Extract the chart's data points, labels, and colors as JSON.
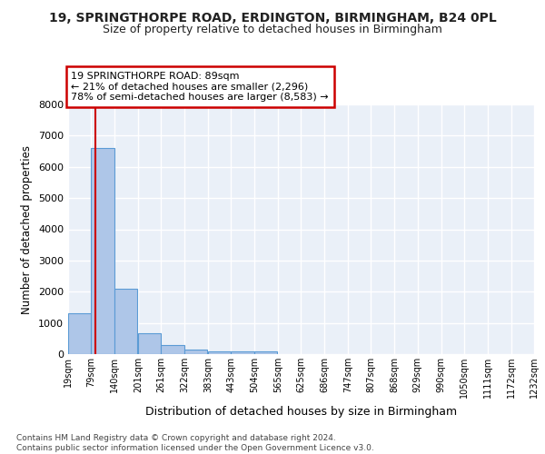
{
  "title": "19, SPRINGTHORPE ROAD, ERDINGTON, BIRMINGHAM, B24 0PL",
  "subtitle": "Size of property relative to detached houses in Birmingham",
  "xlabel": "Distribution of detached houses by size in Birmingham",
  "ylabel": "Number of detached properties",
  "bin_labels": [
    "19sqm",
    "79sqm",
    "140sqm",
    "201sqm",
    "261sqm",
    "322sqm",
    "383sqm",
    "443sqm",
    "504sqm",
    "565sqm",
    "625sqm",
    "686sqm",
    "747sqm",
    "807sqm",
    "868sqm",
    "929sqm",
    "990sqm",
    "1050sqm",
    "1111sqm",
    "1172sqm",
    "1232sqm"
  ],
  "bin_edges": [
    19,
    79,
    140,
    201,
    261,
    322,
    383,
    443,
    504,
    565,
    625,
    686,
    747,
    807,
    868,
    929,
    990,
    1050,
    1111,
    1172,
    1232
  ],
  "bar_heights": [
    1300,
    6600,
    2100,
    680,
    300,
    150,
    100,
    75,
    100,
    0,
    0,
    0,
    0,
    0,
    0,
    0,
    0,
    0,
    0,
    0
  ],
  "bar_color": "#aec6e8",
  "bar_edge_color": "#5b9bd5",
  "property_size": 89,
  "annotation_line1": "19 SPRINGTHORPE ROAD: 89sqm",
  "annotation_line2": "← 21% of detached houses are smaller (2,296)",
  "annotation_line3": "78% of semi-detached houses are larger (8,583) →",
  "annotation_box_color": "#ffffff",
  "annotation_border_color": "#cc0000",
  "vline_color": "#cc0000",
  "ylim": [
    0,
    8000
  ],
  "yticks": [
    0,
    1000,
    2000,
    3000,
    4000,
    5000,
    6000,
    7000,
    8000
  ],
  "background_color": "#eaf0f8",
  "grid_color": "#ffffff",
  "footer_line1": "Contains HM Land Registry data © Crown copyright and database right 2024.",
  "footer_line2": "Contains public sector information licensed under the Open Government Licence v3.0."
}
